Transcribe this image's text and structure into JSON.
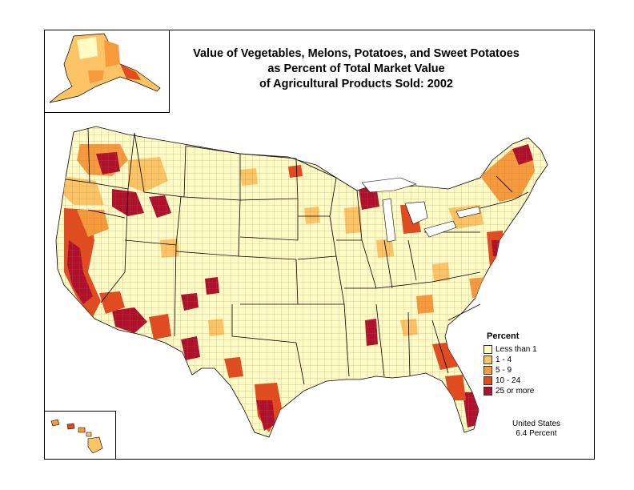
{
  "title": {
    "line1": "Value of Vegetables, Melons, Potatoes, and Sweet Potatoes",
    "line2": "as Percent of Total Market Value",
    "line3": "of Agricultural Products Sold:  2002"
  },
  "legend": {
    "title": "Percent",
    "items": [
      {
        "label": "Less than 1",
        "color": "#fffbc4"
      },
      {
        "label": "1 - 4",
        "color": "#fdc466"
      },
      {
        "label": "5 - 9",
        "color": "#f79a3c"
      },
      {
        "label": "10 - 24",
        "color": "#e34a1d"
      },
      {
        "label": "25 or more",
        "color": "#b0102c"
      }
    ]
  },
  "summary": {
    "region": "United States",
    "value": "6.4 Percent"
  },
  "colors": {
    "background": "#ffffff",
    "border": "#000000",
    "county_line": "#7a6a50"
  }
}
